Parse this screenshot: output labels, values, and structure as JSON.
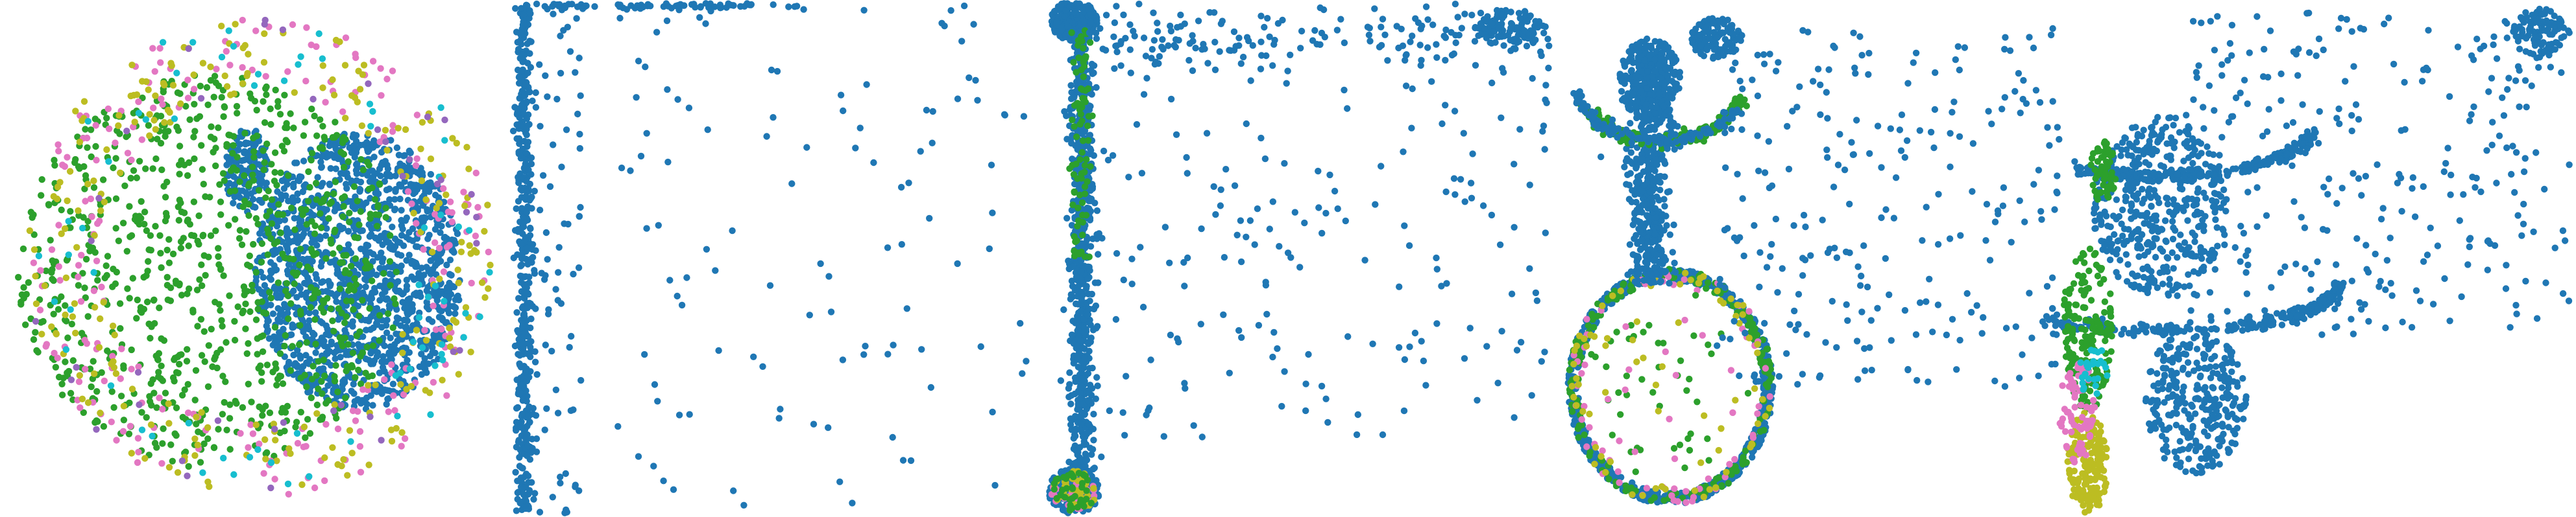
{
  "figure": {
    "background": "#ffffff",
    "panel_count": 5
  },
  "palette": {
    "blue": "#1f77b4",
    "green": "#2ca02c",
    "pink": "#e377c2",
    "olive": "#bcbd22",
    "cyan": "#17becf",
    "purple": "#9467bd"
  },
  "chart_data": [
    {
      "type": "scatter",
      "title": "",
      "xlabel": "",
      "ylabel": "",
      "axes_visible": false,
      "grid": false,
      "xlim": [
        -1,
        1
      ],
      "ylim": [
        -1,
        1
      ],
      "clusters": [
        {
          "color": "blue",
          "shape": "disc",
          "cx": 0.4,
          "cy": -0.05,
          "rx": 0.42,
          "ry": 0.55,
          "n": 1400
        },
        {
          "color": "blue",
          "shape": "disc",
          "cx": -0.05,
          "cy": 0.35,
          "rx": 0.09,
          "ry": 0.17,
          "n": 140
        },
        {
          "color": "green",
          "shape": "disc",
          "cx": -0.2,
          "cy": -0.05,
          "rx": 0.78,
          "ry": 0.78,
          "n": 900
        },
        {
          "color": "pink",
          "shape": "ring",
          "cx": 0.0,
          "cy": 0.0,
          "rx": 0.95,
          "ry": 0.95,
          "width": 0.3,
          "n": 220
        },
        {
          "color": "olive",
          "shape": "ring",
          "cx": 0.0,
          "cy": 0.0,
          "rx": 0.95,
          "ry": 0.95,
          "width": 0.3,
          "n": 230
        },
        {
          "color": "cyan",
          "shape": "ring",
          "cx": 0.0,
          "cy": 0.0,
          "rx": 0.95,
          "ry": 0.95,
          "width": 0.3,
          "n": 70
        },
        {
          "color": "purple",
          "shape": "ring",
          "cx": 0.0,
          "cy": 0.0,
          "rx": 0.95,
          "ry": 0.95,
          "width": 0.3,
          "n": 40
        }
      ]
    },
    {
      "type": "scatter",
      "title": "",
      "xlabel": "",
      "ylabel": "",
      "axes_visible": false,
      "grid": false,
      "xlim": [
        0,
        1
      ],
      "ylim": [
        0,
        1
      ],
      "clusters": [
        {
          "color": "blue",
          "shape": "vline",
          "x": 0.01,
          "y0": 0.0,
          "y1": 1.0,
          "spread": 0.008,
          "n": 420
        },
        {
          "color": "blue",
          "shape": "hline",
          "y": 0.995,
          "x0": 0.0,
          "x1": 0.55,
          "spread": 0.005,
          "n": 90
        },
        {
          "color": "blue",
          "shape": "box",
          "x0": 0.03,
          "x1": 1.0,
          "y0": 0.0,
          "y1": 1.0,
          "n": 120
        },
        {
          "color": "blue",
          "shape": "box",
          "x0": 0.01,
          "x1": 0.12,
          "y0": 0.0,
          "y1": 1.0,
          "n": 80
        }
      ]
    },
    {
      "type": "scatter",
      "title": "",
      "xlabel": "",
      "ylabel": "",
      "axes_visible": false,
      "grid": false,
      "xlim": [
        0,
        1
      ],
      "ylim": [
        0,
        1
      ],
      "clusters": [
        {
          "color": "blue",
          "shape": "disc",
          "cx": 0.07,
          "cy": 0.965,
          "rx": 0.045,
          "ry": 0.04,
          "n": 260
        },
        {
          "color": "blue",
          "shape": "vline",
          "x": 0.085,
          "y0": 0.05,
          "y1": 0.95,
          "spread": 0.012,
          "n": 700
        },
        {
          "color": "green",
          "shape": "vline",
          "x": 0.085,
          "y0": 0.5,
          "y1": 0.95,
          "spread": 0.01,
          "n": 80
        },
        {
          "color": "blue",
          "shape": "disc",
          "cx": 0.07,
          "cy": 0.045,
          "rx": 0.05,
          "ry": 0.045,
          "n": 220
        },
        {
          "color": "pink",
          "shape": "disc",
          "cx": 0.07,
          "cy": 0.045,
          "rx": 0.045,
          "ry": 0.04,
          "n": 30
        },
        {
          "color": "olive",
          "shape": "disc",
          "cx": 0.07,
          "cy": 0.045,
          "rx": 0.045,
          "ry": 0.04,
          "n": 40
        },
        {
          "color": "green",
          "shape": "disc",
          "cx": 0.07,
          "cy": 0.045,
          "rx": 0.045,
          "ry": 0.04,
          "n": 40
        },
        {
          "color": "blue",
          "shape": "hline",
          "y": 0.94,
          "x0": 0.1,
          "x1": 1.0,
          "spread": 0.03,
          "n": 160
        },
        {
          "color": "blue",
          "shape": "disc",
          "cx": 0.92,
          "cy": 0.95,
          "rx": 0.07,
          "ry": 0.04,
          "n": 110
        },
        {
          "color": "blue",
          "shape": "box",
          "x0": 0.1,
          "x1": 1.0,
          "y0": 0.15,
          "y1": 0.9,
          "n": 200
        }
      ]
    },
    {
      "type": "scatter",
      "title": "",
      "xlabel": "",
      "ylabel": "",
      "axes_visible": false,
      "grid": false,
      "xlim": [
        0,
        1
      ],
      "ylim": [
        0,
        1
      ],
      "clusters": [
        {
          "color": "blue",
          "shape": "ring",
          "cx": 0.24,
          "cy": 0.25,
          "rx": 0.2,
          "ry": 0.23,
          "width": 0.02,
          "n": 700
        },
        {
          "color": "green",
          "shape": "ring",
          "cx": 0.24,
          "cy": 0.25,
          "rx": 0.2,
          "ry": 0.23,
          "width": 0.02,
          "n": 200
        },
        {
          "color": "pink",
          "shape": "ring",
          "cx": 0.24,
          "cy": 0.25,
          "rx": 0.2,
          "ry": 0.23,
          "width": 0.03,
          "n": 60
        },
        {
          "color": "olive",
          "shape": "ring",
          "cx": 0.24,
          "cy": 0.25,
          "rx": 0.2,
          "ry": 0.23,
          "width": 0.03,
          "n": 60
        },
        {
          "color": "green",
          "shape": "disc",
          "cx": 0.24,
          "cy": 0.25,
          "rx": 0.17,
          "ry": 0.19,
          "n": 45
        },
        {
          "color": "pink",
          "shape": "disc",
          "cx": 0.24,
          "cy": 0.25,
          "rx": 0.17,
          "ry": 0.19,
          "n": 14
        },
        {
          "color": "olive",
          "shape": "disc",
          "cx": 0.24,
          "cy": 0.25,
          "rx": 0.17,
          "ry": 0.19,
          "n": 18
        },
        {
          "color": "blue",
          "shape": "vline",
          "x": 0.2,
          "y0": 0.45,
          "y1": 0.9,
          "spread": 0.02,
          "n": 500
        },
        {
          "color": "blue",
          "shape": "disc",
          "cx": 0.2,
          "cy": 0.85,
          "rx": 0.06,
          "ry": 0.08,
          "n": 220
        },
        {
          "color": "green",
          "shape": "arc",
          "cx": 0.22,
          "cy": 0.86,
          "rx": 0.17,
          "ry": 0.13,
          "from": 200,
          "to": 330,
          "n": 220
        },
        {
          "color": "blue",
          "shape": "arc",
          "cx": 0.22,
          "cy": 0.86,
          "rx": 0.17,
          "ry": 0.13,
          "from": 210,
          "to": 345,
          "n": 120
        },
        {
          "color": "blue",
          "shape": "disc",
          "cx": 0.33,
          "cy": 0.93,
          "rx": 0.05,
          "ry": 0.04,
          "n": 120
        },
        {
          "color": "blue",
          "shape": "box",
          "x0": 0.33,
          "x1": 1.0,
          "y0": 0.25,
          "y1": 0.95,
          "n": 260
        }
      ]
    },
    {
      "type": "scatter",
      "title": "",
      "xlabel": "",
      "ylabel": "",
      "axes_visible": false,
      "grid": false,
      "xlim": [
        0,
        1
      ],
      "ylim": [
        0,
        1
      ],
      "clusters": [
        {
          "color": "blue",
          "shape": "arc",
          "cx": 0.2,
          "cy": 0.78,
          "rx": 0.32,
          "ry": 0.12,
          "from": 200,
          "to": 300,
          "n": 260
        },
        {
          "color": "blue",
          "shape": "arc",
          "cx": 0.2,
          "cy": 0.45,
          "rx": 0.35,
          "ry": 0.09,
          "from": 180,
          "to": 310,
          "n": 240
        },
        {
          "color": "blue",
          "shape": "disc",
          "cx": 0.2,
          "cy": 0.6,
          "rx": 0.13,
          "ry": 0.18,
          "n": 420
        },
        {
          "color": "blue",
          "shape": "disc",
          "cx": 0.27,
          "cy": 0.22,
          "rx": 0.1,
          "ry": 0.14,
          "n": 300
        },
        {
          "color": "green",
          "shape": "disc",
          "cx": 0.06,
          "cy": 0.36,
          "rx": 0.05,
          "ry": 0.16,
          "n": 180
        },
        {
          "color": "green",
          "shape": "disc",
          "cx": 0.09,
          "cy": 0.67,
          "rx": 0.025,
          "ry": 0.06,
          "n": 60
        },
        {
          "color": "olive",
          "shape": "disc",
          "cx": 0.06,
          "cy": 0.1,
          "rx": 0.04,
          "ry": 0.1,
          "n": 180
        },
        {
          "color": "pink",
          "shape": "disc",
          "cx": 0.04,
          "cy": 0.2,
          "rx": 0.035,
          "ry": 0.1,
          "n": 70
        },
        {
          "color": "cyan",
          "shape": "disc",
          "cx": 0.07,
          "cy": 0.28,
          "rx": 0.03,
          "ry": 0.05,
          "n": 25
        },
        {
          "color": "blue",
          "shape": "box",
          "x0": 0.25,
          "x1": 1.0,
          "y0": 0.35,
          "y1": 0.98,
          "n": 300
        },
        {
          "color": "blue",
          "shape": "disc",
          "cx": 0.94,
          "cy": 0.94,
          "rx": 0.05,
          "ry": 0.05,
          "n": 90
        }
      ]
    }
  ]
}
